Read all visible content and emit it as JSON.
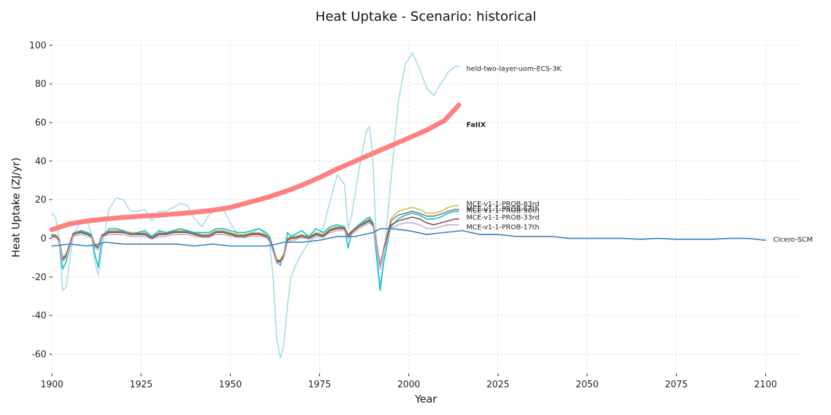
{
  "chart_data": {
    "type": "line",
    "title": "Heat Uptake - Scenario: historical",
    "xlabel": "Year",
    "ylabel": "Heat Uptake (ZJ/yr)",
    "xlim": [
      1900,
      2110
    ],
    "ylim": [
      -70,
      103
    ],
    "xticks": [
      1900,
      1925,
      1950,
      1975,
      2000,
      2025,
      2050,
      2075,
      2100
    ],
    "yticks": [
      -60,
      -40,
      -20,
      0,
      20,
      40,
      60,
      80,
      100
    ],
    "grid": true,
    "series": [
      {
        "name": "held-two-layer-uom-ECS-3K",
        "color": "#a8dde5",
        "x": [
          1900,
          1901,
          1902,
          1903,
          1904,
          1906,
          1908,
          1910,
          1911,
          1912,
          1913,
          1914,
          1916,
          1918,
          1920,
          1922,
          1924,
          1926,
          1928,
          1930,
          1932,
          1934,
          1936,
          1938,
          1940,
          1942,
          1944,
          1946,
          1948,
          1950,
          1952,
          1954,
          1956,
          1958,
          1960,
          1961,
          1962,
          1963,
          1964,
          1965,
          1966,
          1967,
          1968,
          1970,
          1972,
          1974,
          1976,
          1978,
          1980,
          1982,
          1983,
          1984,
          1986,
          1988,
          1989,
          1990,
          1991,
          1992,
          1993,
          1995,
          1997,
          1999,
          2001,
          2003,
          2005,
          2007,
          2009,
          2011,
          2013,
          2014
        ],
        "y": [
          13,
          11,
          0,
          -27,
          -25,
          2,
          8,
          8,
          3,
          -12,
          -19,
          -5,
          15,
          21,
          20,
          14,
          14,
          15,
          9,
          14,
          14,
          16,
          18,
          17,
          10,
          6,
          12,
          15,
          15,
          8,
          2,
          0,
          3,
          5,
          2,
          -2,
          -20,
          -52,
          -62,
          -55,
          -35,
          -20,
          -15,
          -8,
          -2,
          1,
          5,
          20,
          33,
          28,
          5,
          12,
          35,
          55,
          58,
          40,
          -5,
          -25,
          -10,
          30,
          70,
          90,
          96,
          88,
          78,
          74,
          80,
          86,
          89,
          89
        ],
        "label_y": 88
      },
      {
        "name": "FaIIX",
        "color": "#ff8080",
        "bold": true,
        "x": [
          1900,
          1905,
          1910,
          1915,
          1920,
          1925,
          1930,
          1935,
          1940,
          1945,
          1950,
          1955,
          1960,
          1965,
          1970,
          1975,
          1980,
          1985,
          1990,
          1995,
          2000,
          2005,
          2008,
          2010,
          2011,
          2012,
          2013,
          2014
        ],
        "y": [
          4.5,
          7.5,
          9,
          10,
          10.8,
          11.5,
          12,
          12.7,
          13.5,
          14.5,
          16,
          18.5,
          21,
          24,
          27.5,
          31.5,
          36,
          40,
          44,
          48,
          52,
          56,
          59,
          61,
          63,
          65,
          67,
          69
        ],
        "label_y": 59
      },
      {
        "name": "MCE-v1-1-PROB-83rd",
        "color": "#c9c34a",
        "x": [
          1900,
          1901,
          1902,
          1903,
          1904,
          1906,
          1908,
          1910,
          1911,
          1912,
          1913,
          1914,
          1916,
          1918,
          1920,
          1922,
          1924,
          1926,
          1928,
          1930,
          1932,
          1934,
          1936,
          1938,
          1940,
          1942,
          1944,
          1946,
          1948,
          1950,
          1952,
          1954,
          1956,
          1958,
          1960,
          1961,
          1962,
          1963,
          1964,
          1965,
          1966,
          1967,
          1968,
          1970,
          1972,
          1974,
          1976,
          1978,
          1980,
          1982,
          1983,
          1984,
          1986,
          1988,
          1989,
          1990,
          1991,
          1992,
          1993,
          1995,
          1997,
          1999,
          2001,
          2003,
          2005,
          2007,
          2009,
          2011,
          2013,
          2014
        ],
        "y": [
          2,
          2,
          0,
          -10,
          -8,
          3,
          4,
          3,
          2,
          -3,
          -4,
          2,
          4,
          4,
          4,
          3,
          3,
          3,
          1,
          3,
          3,
          4,
          4,
          4,
          3,
          2,
          2,
          4,
          4,
          3,
          2,
          2,
          3,
          3,
          2,
          0,
          -5,
          -11,
          -11,
          -8,
          0,
          1,
          1,
          2,
          1,
          3,
          2,
          5,
          6,
          6,
          2,
          4,
          7,
          9,
          10,
          8,
          -3,
          -14,
          -5,
          10,
          14,
          15,
          16,
          15,
          13,
          13,
          14,
          16,
          17,
          17
        ],
        "label_y": 18
      },
      {
        "name": "MCE-v1-1-PROB-67th",
        "color": "#7f7f7f",
        "x": [
          1900,
          1901,
          1902,
          1903,
          1904,
          1906,
          1908,
          1910,
          1911,
          1912,
          1913,
          1914,
          1916,
          1918,
          1920,
          1922,
          1924,
          1926,
          1928,
          1930,
          1932,
          1934,
          1936,
          1938,
          1940,
          1942,
          1944,
          1946,
          1948,
          1950,
          1952,
          1954,
          1956,
          1958,
          1960,
          1961,
          1962,
          1963,
          1964,
          1965,
          1966,
          1967,
          1968,
          1970,
          1972,
          1974,
          1976,
          1978,
          1980,
          1982,
          1983,
          1984,
          1986,
          1988,
          1989,
          1990,
          1991,
          1992,
          1993,
          1995,
          1997,
          1999,
          2001,
          2003,
          2005,
          2007,
          2009,
          2011,
          2013,
          2014
        ],
        "y": [
          1.5,
          1.5,
          -0.5,
          -10.5,
          -8.5,
          2.5,
          3.5,
          2.5,
          1.5,
          -3.5,
          -4.5,
          1.5,
          3.5,
          3.5,
          3.5,
          2.5,
          2.5,
          2.5,
          0.5,
          2.5,
          2.5,
          3.5,
          3.5,
          3.5,
          2.5,
          1.5,
          1.5,
          3.5,
          3.5,
          2.5,
          1.5,
          1.5,
          2.5,
          2.5,
          1.5,
          -0.5,
          -5.5,
          -11.5,
          -11.5,
          -8.5,
          -0.5,
          0.5,
          0.5,
          1.5,
          0.5,
          2.5,
          1.5,
          4.5,
          5.5,
          5.5,
          1.5,
          3.5,
          6.5,
          8.5,
          9.5,
          7.5,
          -3.5,
          -14.5,
          -5.5,
          9,
          12,
          13,
          14,
          13,
          11.5,
          11.5,
          12.5,
          14,
          15,
          15
        ],
        "label_y": 15.5
      },
      {
        "name": "MCE-v1-1-PROB-50th",
        "color": "#17becf",
        "x": [
          1900,
          1901,
          1902,
          1903,
          1904,
          1906,
          1908,
          1910,
          1911,
          1912,
          1913,
          1914,
          1916,
          1918,
          1920,
          1922,
          1924,
          1926,
          1928,
          1930,
          1932,
          1934,
          1936,
          1938,
          1940,
          1942,
          1944,
          1946,
          1948,
          1950,
          1952,
          1954,
          1956,
          1958,
          1960,
          1961,
          1962,
          1963,
          1964,
          1965,
          1966,
          1967,
          1968,
          1970,
          1972,
          1974,
          1976,
          1978,
          1980,
          1982,
          1983,
          1984,
          1986,
          1988,
          1989,
          1990,
          1991,
          1992,
          1993,
          1995,
          1997,
          1999,
          2001,
          2003,
          2005,
          2007,
          2009,
          2011,
          2013,
          2014
        ],
        "y": [
          2,
          1,
          -2,
          -16,
          -12,
          2,
          4,
          3,
          2,
          -8,
          -15,
          0,
          5,
          5,
          4,
          2,
          3,
          4,
          1,
          4,
          3,
          4,
          5,
          4,
          3,
          3,
          3,
          5,
          5,
          4,
          3,
          3,
          4,
          5,
          3,
          1,
          -5,
          -12,
          -14,
          -9,
          3,
          1,
          2,
          4,
          1,
          5,
          3,
          6,
          7,
          6,
          -5,
          3,
          7,
          10,
          11,
          8,
          -10,
          -27,
          -12,
          6,
          10,
          12,
          13,
          12,
          10,
          10,
          11,
          13,
          14,
          14
        ],
        "label_y": 14.5
      },
      {
        "name": "MCE-v1-1-PROB-33rd",
        "color": "#8c564b",
        "x": [
          1900,
          1901,
          1902,
          1903,
          1904,
          1906,
          1908,
          1910,
          1911,
          1912,
          1913,
          1914,
          1916,
          1918,
          1920,
          1922,
          1924,
          1926,
          1928,
          1930,
          1932,
          1934,
          1936,
          1938,
          1940,
          1942,
          1944,
          1946,
          1948,
          1950,
          1952,
          1954,
          1956,
          1958,
          1960,
          1961,
          1962,
          1963,
          1964,
          1965,
          1966,
          1967,
          1968,
          1970,
          1972,
          1974,
          1976,
          1978,
          1980,
          1982,
          1983,
          1984,
          1986,
          1988,
          1989,
          1990,
          1991,
          1992,
          1993,
          1995,
          1997,
          1999,
          2001,
          2003,
          2005,
          2007,
          2009,
          2011,
          2013,
          2014
        ],
        "y": [
          1,
          1,
          -1,
          -11,
          -9,
          2,
          3,
          2,
          1,
          -4,
          -5,
          1,
          3,
          3,
          3,
          2,
          2,
          2,
          0,
          2,
          2,
          3,
          3,
          3,
          2,
          1,
          1,
          3,
          3,
          2,
          1,
          1,
          2,
          2,
          1,
          -1,
          -6,
          -12,
          -12,
          -9,
          -1,
          0,
          0,
          1,
          0,
          2,
          1,
          4,
          5,
          5,
          1,
          3,
          6,
          8,
          9,
          7,
          -4,
          -15,
          -6,
          7,
          9,
          10,
          11,
          10,
          8,
          7,
          8,
          9,
          10,
          10
        ],
        "label_y": 11
      },
      {
        "name": "MCE-v1-1-PROB-17th",
        "color": "#c5b0d5",
        "x": [
          1900,
          1901,
          1902,
          1903,
          1904,
          1906,
          1908,
          1910,
          1911,
          1912,
          1913,
          1914,
          1916,
          1918,
          1920,
          1922,
          1924,
          1926,
          1928,
          1930,
          1932,
          1934,
          1936,
          1938,
          1940,
          1942,
          1944,
          1946,
          1948,
          1950,
          1952,
          1954,
          1956,
          1958,
          1960,
          1961,
          1962,
          1963,
          1964,
          1965,
          1966,
          1967,
          1968,
          1970,
          1972,
          1974,
          1976,
          1978,
          1980,
          1982,
          1983,
          1984,
          1986,
          1988,
          1989,
          1990,
          1991,
          1992,
          1993,
          1995,
          1997,
          1999,
          2001,
          2003,
          2005,
          2007,
          2009,
          2011,
          2013,
          2014
        ],
        "y": [
          0.5,
          0.5,
          -1.5,
          -12,
          -10,
          1,
          2,
          1,
          0.5,
          -5,
          -6,
          0.5,
          2,
          2,
          2,
          1,
          1,
          1,
          -0.5,
          1,
          1,
          2,
          2,
          2,
          1,
          0.5,
          0.5,
          2,
          2,
          1,
          0.5,
          0.5,
          1,
          1,
          0.5,
          -1.5,
          -7,
          -13,
          -13,
          -10,
          -2,
          -1,
          -1,
          0.5,
          -0.5,
          1,
          0.5,
          3,
          4,
          4,
          0,
          2,
          5,
          7,
          8,
          6,
          -5,
          -16,
          -7,
          5,
          7,
          8,
          8,
          7,
          5,
          5,
          6,
          7,
          7,
          7
        ],
        "label_y": 6
      },
      {
        "name": "Cicero-SCM",
        "color": "#3a88c0",
        "x": [
          1900,
          1905,
          1910,
          1913,
          1915,
          1920,
          1925,
          1930,
          1935,
          1940,
          1945,
          1950,
          1955,
          1960,
          1963,
          1965,
          1970,
          1975,
          1980,
          1985,
          1990,
          1992,
          1995,
          2000,
          2005,
          2010,
          2015,
          2020,
          2025,
          2030,
          2035,
          2040,
          2045,
          2050,
          2055,
          2060,
          2065,
          2070,
          2075,
          2080,
          2085,
          2090,
          2095,
          2100
        ],
        "y": [
          -4,
          -3,
          -4,
          -3,
          -2,
          -3,
          -3,
          -3,
          -3,
          -4,
          -3,
          -4,
          -4,
          -4,
          -3,
          -2,
          -2,
          -1,
          1,
          1,
          3,
          5,
          5,
          4,
          2,
          3,
          4,
          2,
          2,
          1,
          1,
          1,
          0,
          0,
          0,
          0,
          -0.5,
          0,
          -0.5,
          -0.5,
          -0.5,
          0,
          0,
          -1
        ],
        "label_y": -0.5
      }
    ]
  }
}
